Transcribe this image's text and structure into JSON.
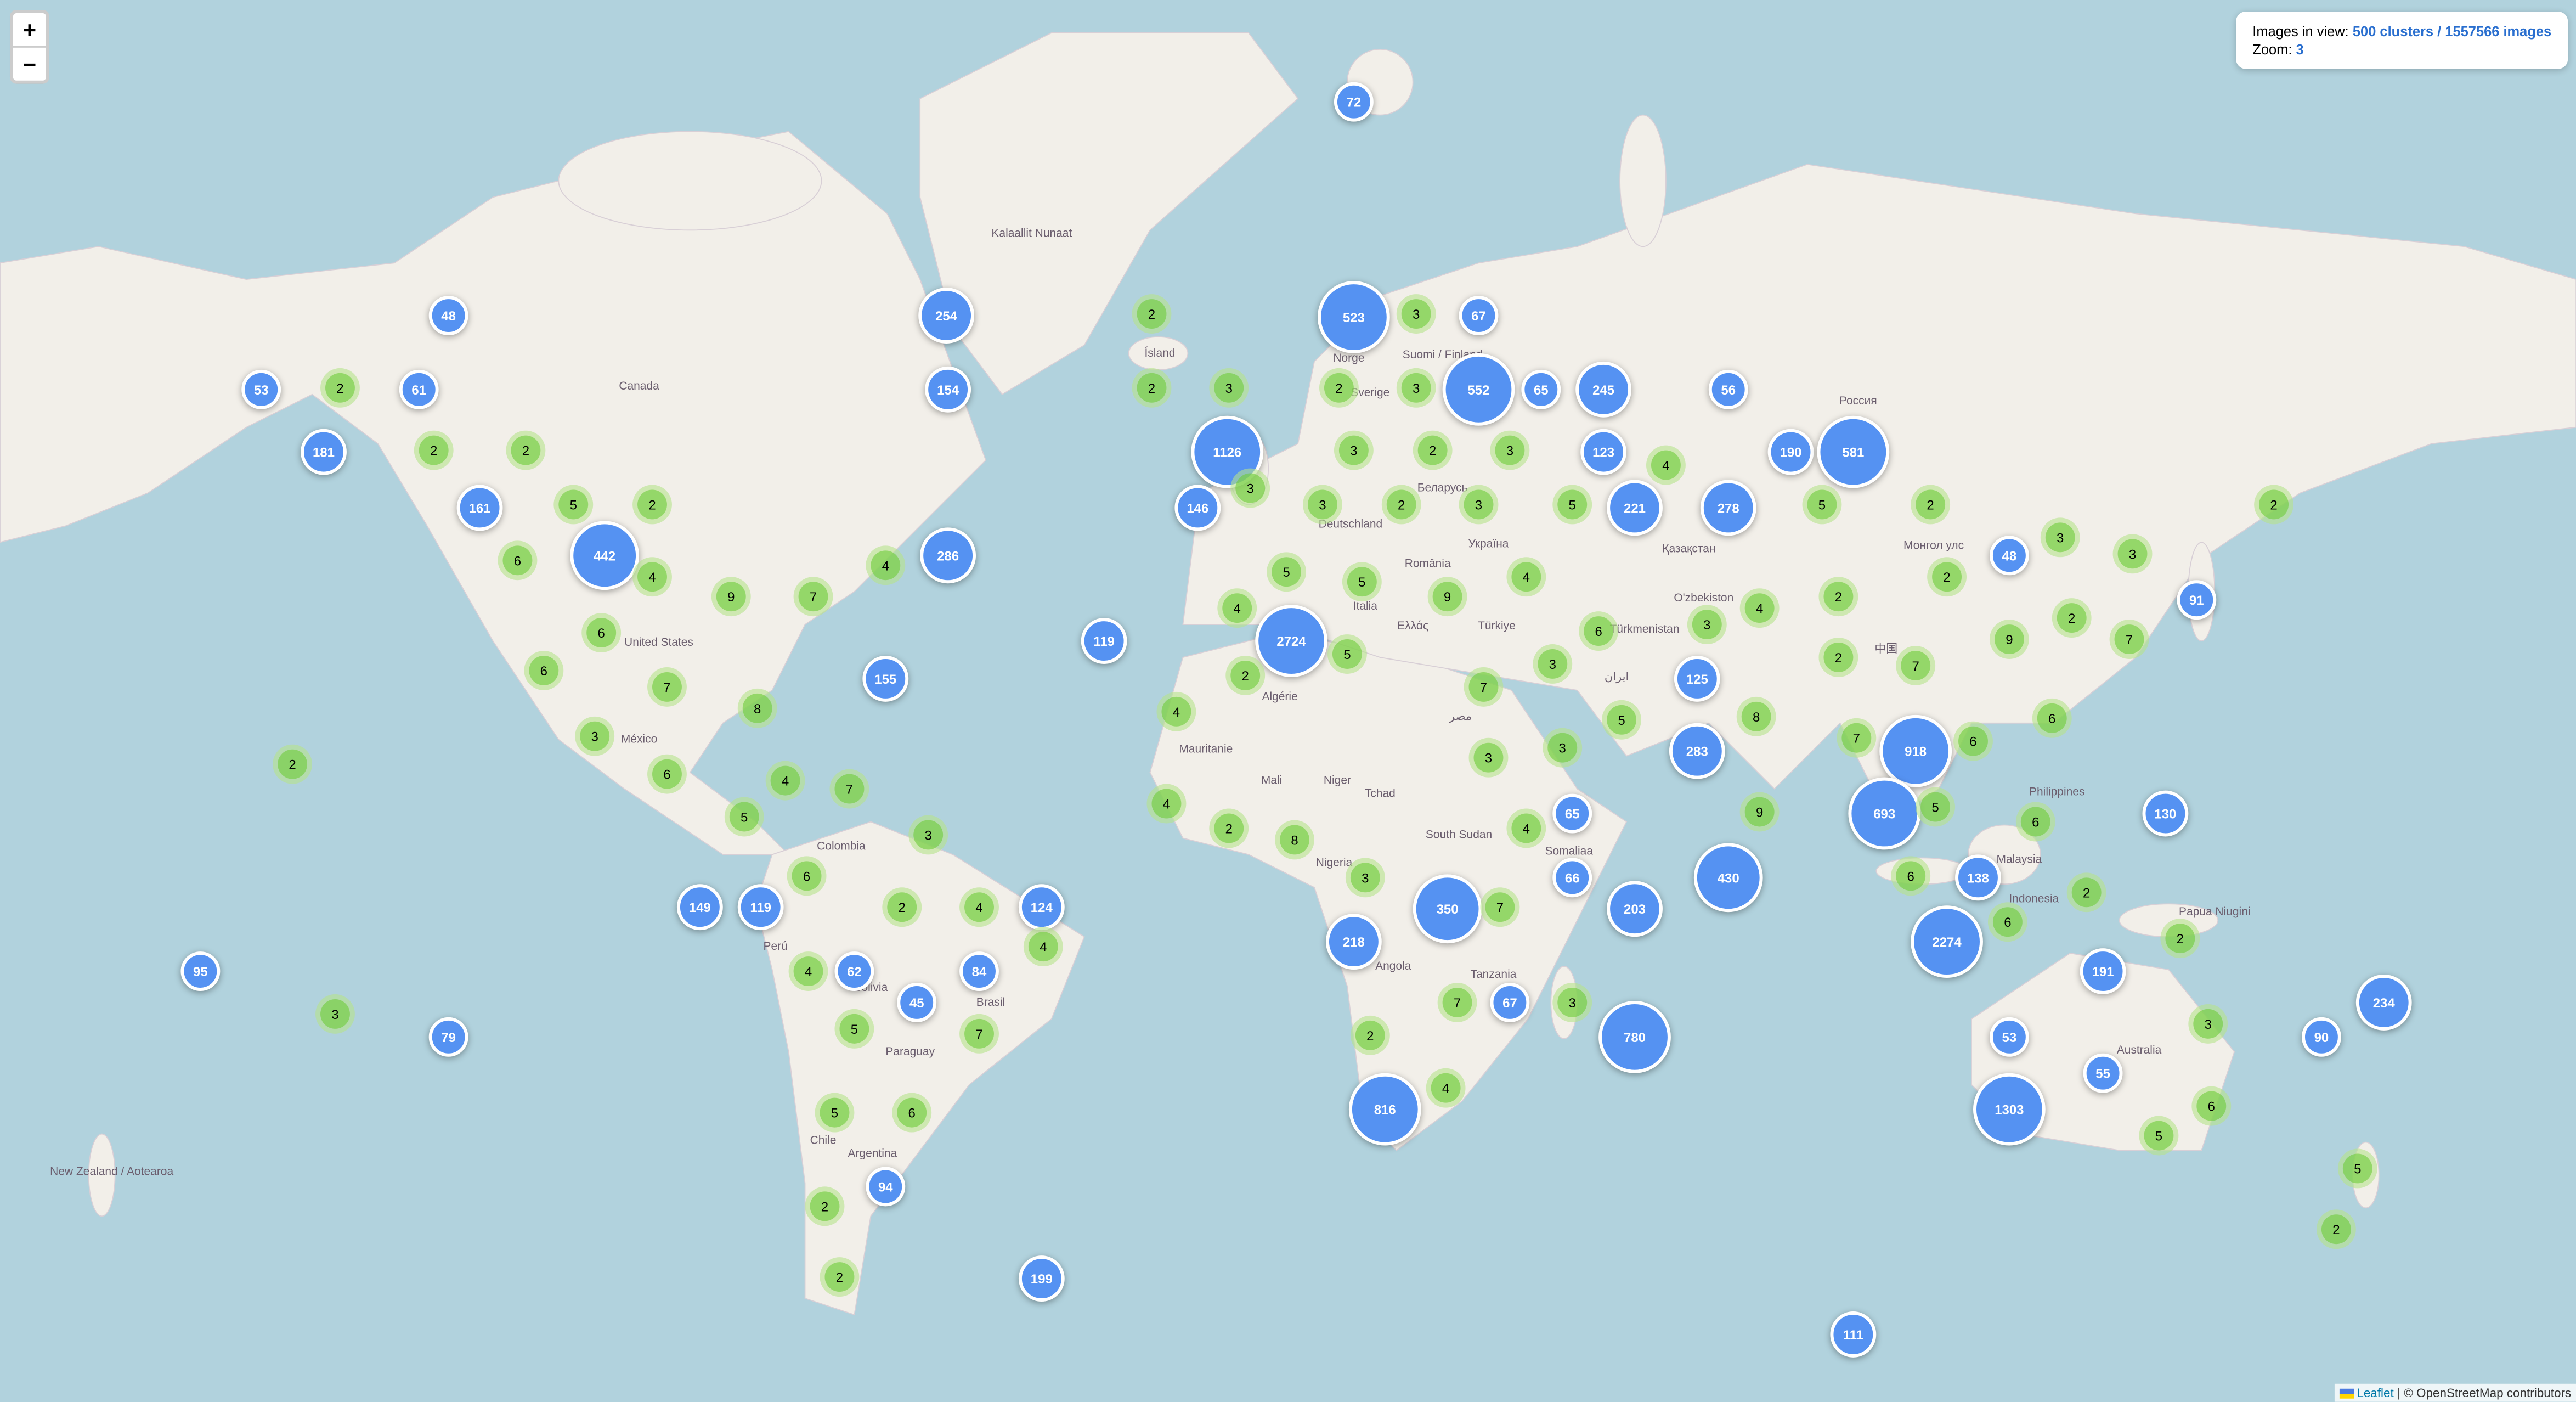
{
  "info": {
    "images_label": "Images in view:",
    "images_value": "500 clusters / 1557566 images",
    "zoom_label": "Zoom:",
    "zoom_value": "3"
  },
  "zoom_controls": {
    "zoom_in": "+",
    "zoom_out": "−"
  },
  "attribution": {
    "leaflet": "Leaflet",
    "separator": "|",
    "osm": "© OpenStreetMap contributors"
  },
  "colors": {
    "water": "#b1d2dd",
    "land": "#f2efe9",
    "large_cluster": "#5592f2",
    "small_cluster": "#6ecc39"
  },
  "labels": [
    "Kalaallit Nunaat",
    "Canada",
    "United States",
    "México",
    "Ísland",
    "Norge",
    "Sverige",
    "Suomi / Finland",
    "Россия",
    "Deutschland",
    "Беларусь",
    "Україна",
    "România",
    "Italia",
    "Ελλάς",
    "Türkiye",
    "Algérie",
    "Mauritanie",
    "Mali",
    "Niger",
    "Tchad",
    "مصر",
    "South Sudan",
    "Somaliaa",
    "Angola",
    "Tanzania",
    "Қазақстан",
    "O'zbekiston",
    "Türkmenistan",
    "ایران",
    "Монгол улс",
    "中国",
    "Colombia",
    "Perú",
    "Bolivia",
    "Brasil",
    "Paraguay",
    "Chile",
    "Argentina",
    "New Zealand / Aotearoa",
    "Australia",
    "Nigeria",
    "Malaysia",
    "Indonesia",
    "Philippines",
    "Papua Niugini"
  ],
  "clusters": [
    72,
    48,
    254,
    53,
    61,
    154,
    181,
    161,
    442,
    286,
    119,
    155,
    523,
    67,
    552,
    65,
    245,
    56,
    1126,
    123,
    190,
    581,
    146,
    221,
    278,
    2724,
    125,
    283,
    918,
    693,
    65,
    130,
    91,
    48,
    149,
    119,
    124,
    62,
    84,
    45,
    95,
    79,
    94,
    199,
    111,
    350,
    218,
    66,
    203,
    430,
    138,
    2274,
    191,
    234,
    90,
    53,
    55,
    1303,
    67,
    780,
    816,
    2,
    3,
    2,
    3,
    2,
    3,
    2,
    2,
    2,
    3,
    2,
    3,
    4,
    3,
    3,
    2,
    3,
    5,
    5,
    2,
    2,
    5,
    2,
    6,
    4,
    4,
    3,
    3,
    2,
    5,
    5,
    9,
    4,
    9,
    7,
    4,
    2,
    4,
    2,
    7,
    9,
    6,
    6,
    3,
    6,
    5,
    2,
    3,
    2,
    7,
    7,
    7,
    8,
    4,
    8,
    6,
    5,
    3,
    3,
    7,
    6,
    2,
    3,
    6,
    4,
    7,
    4,
    5,
    5,
    9,
    6,
    2,
    4,
    8,
    3,
    3,
    6,
    6,
    2,
    4,
    7,
    2,
    6,
    4,
    2,
    4,
    3,
    7,
    3,
    5,
    7,
    3,
    2,
    4,
    5,
    6,
    6,
    5,
    5,
    2,
    2,
    2
  ]
}
